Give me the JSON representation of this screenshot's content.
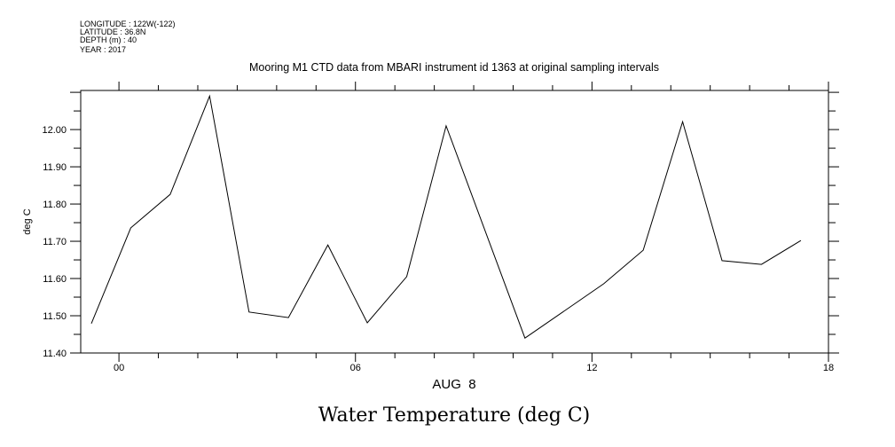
{
  "header": {
    "lines": [
      "LONGITUDE : 122W(-122)",
      "LATITUDE : 36.8N",
      "DEPTH (m) : 40",
      "YEAR : 2017"
    ]
  },
  "chart_data": {
    "type": "line",
    "title": "Mooring M1 CTD data from MBARI instrument id 1363 at original sampling intervals",
    "bottom_title": "Water Temperature (deg C)",
    "xlabel": "AUG  8",
    "ylabel": "deg C",
    "xlim": [
      -0.97,
      18
    ],
    "ylim": [
      11.4,
      12.105
    ],
    "x_ticks": [
      0,
      6,
      12,
      18
    ],
    "x_tick_labels": [
      "00",
      "06",
      "12",
      "18"
    ],
    "y_ticks": [
      11.4,
      11.5,
      11.6,
      11.7,
      11.8,
      11.9,
      12.0
    ],
    "y_tick_labels": [
      "11.40",
      "11.50",
      "11.60",
      "11.70",
      "11.80",
      "11.90",
      "12.00"
    ],
    "grid": false,
    "series": [
      {
        "name": "Water Temperature",
        "color": "#000000",
        "x": [
          -0.7,
          0.3,
          1.3,
          2.3,
          3.3,
          4.3,
          5.3,
          6.3,
          7.3,
          8.3,
          10.3,
          12.3,
          13.3,
          14.3,
          15.3,
          16.3,
          17.3
        ],
        "y": [
          11.479,
          11.736,
          11.826,
          12.09,
          11.51,
          11.495,
          11.69,
          11.481,
          11.605,
          12.01,
          11.44,
          11.586,
          11.676,
          12.021,
          11.648,
          11.638,
          11.702
        ]
      }
    ]
  }
}
